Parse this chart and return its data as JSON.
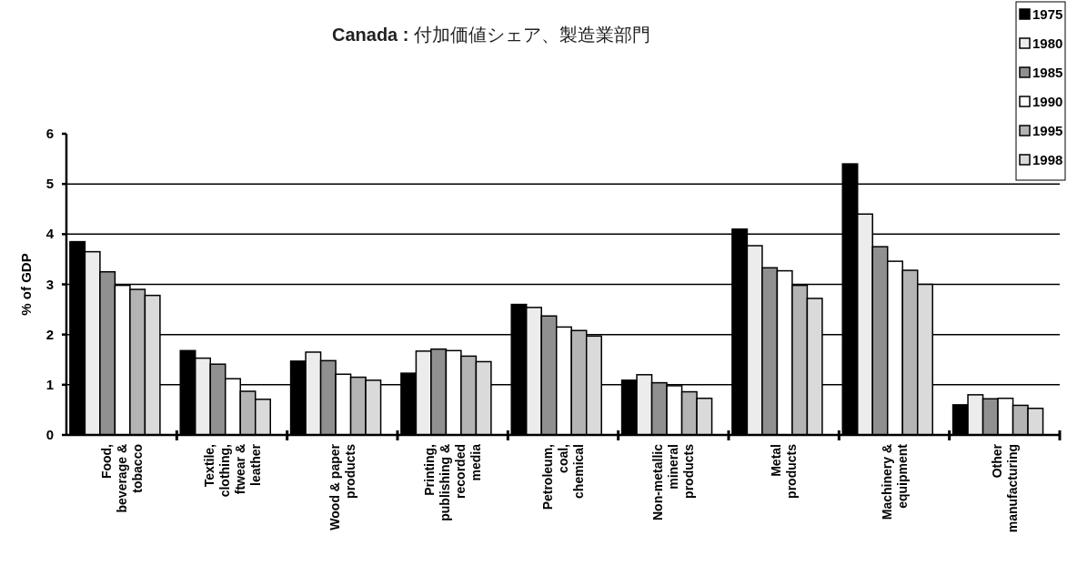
{
  "chart_data": {
    "type": "bar",
    "title": "**Canada :** 付加価値シェア、製造業部門",
    "ylabel": "% of GDP",
    "categories": [
      "Food, beverage & tobacco",
      "Textile, clothing, ftwear & leather",
      "Wood & paper products",
      "Printing, publishing & recorded media",
      "Petroleum, coal, chemical",
      "Non-metallic mineral products",
      "Metal products",
      "Machinery & equipment",
      "Other manufacturing"
    ],
    "series": [
      {
        "name": "1975",
        "color": "#000000",
        "values": [
          3.85,
          1.68,
          1.47,
          1.23,
          2.6,
          1.09,
          4.1,
          5.4,
          0.6
        ]
      },
      {
        "name": "1980",
        "color": "#ececec",
        "values": [
          3.65,
          1.53,
          1.65,
          1.67,
          2.54,
          1.2,
          3.77,
          4.4,
          0.8
        ]
      },
      {
        "name": "1985",
        "color": "#909090",
        "values": [
          3.25,
          1.41,
          1.48,
          1.71,
          2.37,
          1.04,
          3.33,
          3.75,
          0.72
        ]
      },
      {
        "name": "1990",
        "color": "#ffffff",
        "values": [
          2.98,
          1.12,
          1.21,
          1.68,
          2.15,
          0.98,
          3.27,
          3.46,
          0.73
        ]
      },
      {
        "name": "1995",
        "color": "#b4b4b4",
        "values": [
          2.9,
          0.87,
          1.15,
          1.57,
          2.08,
          0.86,
          2.98,
          3.28,
          0.59
        ]
      },
      {
        "name": "1998",
        "color": "#dadada",
        "values": [
          2.78,
          0.71,
          1.09,
          1.46,
          1.97,
          0.73,
          2.72,
          3.0,
          0.53
        ]
      }
    ],
    "ylim": [
      0,
      6
    ],
    "yticks": [
      0,
      1,
      2,
      3,
      4,
      5,
      6
    ],
    "grid": "y",
    "legend": "top right"
  }
}
